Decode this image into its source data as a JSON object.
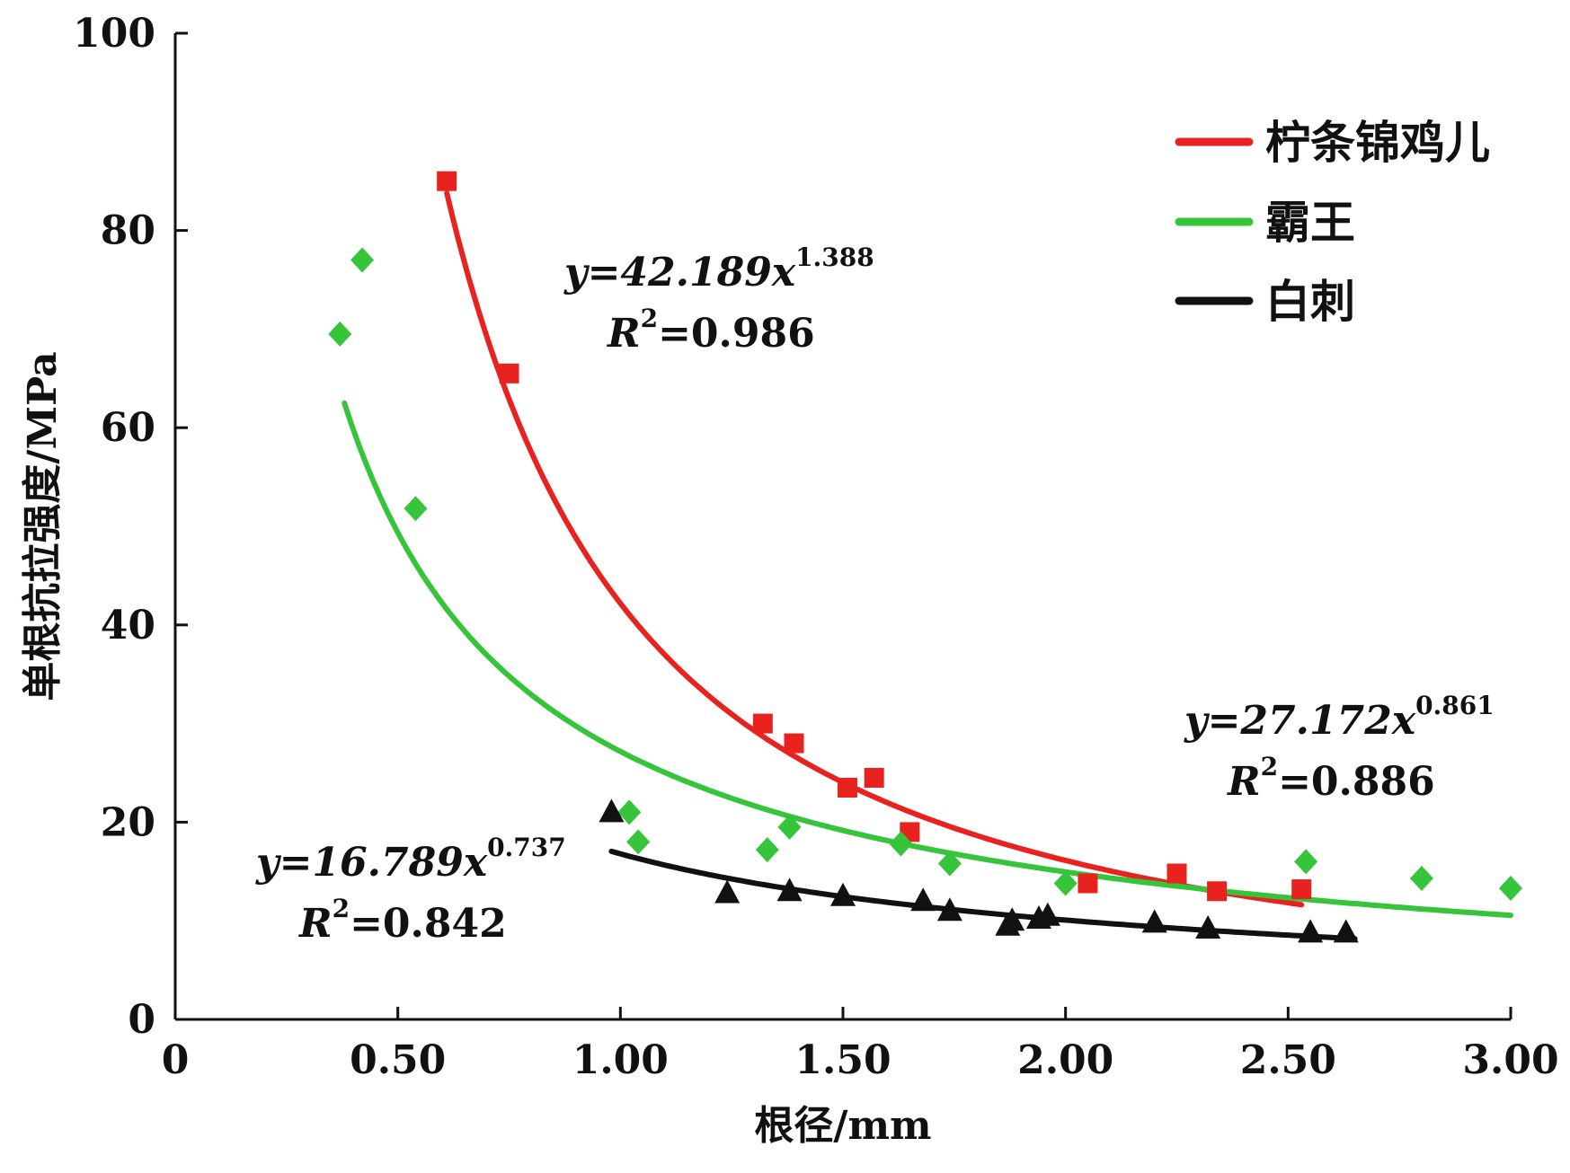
{
  "chart_data": {
    "type": "scatter",
    "xlabel": "根径/mm",
    "ylabel": "单根抗拉强度/MPa",
    "xlim": [
      0,
      3.0
    ],
    "ylim": [
      0,
      100
    ],
    "x_ticks": [
      0,
      0.5,
      1.0,
      1.5,
      2.0,
      2.5,
      3.0
    ],
    "x_tick_labels": [
      "0",
      "0.50",
      "1.00",
      "1.50",
      "2.00",
      "2.50",
      "3.00"
    ],
    "y_ticks": [
      0,
      20,
      40,
      60,
      80,
      100
    ],
    "y_tick_labels": [
      "0",
      "20",
      "40",
      "60",
      "80",
      "100"
    ],
    "legend_position": "top-right",
    "grid": false,
    "series": [
      {
        "name": "柠条锦鸡儿",
        "color": "#e8231f",
        "marker": "square",
        "fit": {
          "a": 42.189,
          "b": 1.388,
          "x_range": [
            0.61,
            2.53
          ]
        },
        "equation": {
          "lhs": "y=42.189x",
          "exp": "1.388",
          "r2_prefix": "R",
          "r2_sup": "2",
          "r2_value": "=0.986"
        },
        "points": [
          [
            0.61,
            85
          ],
          [
            0.75,
            65.5
          ],
          [
            1.32,
            30
          ],
          [
            1.39,
            28
          ],
          [
            1.51,
            23.5
          ],
          [
            1.57,
            24.5
          ],
          [
            1.65,
            19
          ],
          [
            2.05,
            13.8
          ],
          [
            2.25,
            14.8
          ],
          [
            2.34,
            13
          ],
          [
            2.53,
            13.2
          ]
        ]
      },
      {
        "name": "霸王",
        "color": "#35c43a",
        "marker": "diamond",
        "fit": {
          "a": 27.172,
          "b": 0.861,
          "x_range": [
            0.38,
            3.0
          ]
        },
        "equation": {
          "lhs": "y=27.172x",
          "exp": "0.861",
          "r2_prefix": "R",
          "r2_sup": "2",
          "r2_value": "=0.886"
        },
        "points": [
          [
            0.37,
            69.5
          ],
          [
            0.42,
            77
          ],
          [
            0.54,
            51.8
          ],
          [
            1.02,
            21
          ],
          [
            1.04,
            18
          ],
          [
            1.33,
            17.2
          ],
          [
            1.38,
            19.5
          ],
          [
            1.63,
            17.8
          ],
          [
            1.74,
            15.8
          ],
          [
            2.0,
            13.8
          ],
          [
            2.54,
            16
          ],
          [
            2.8,
            14.3
          ],
          [
            3.0,
            13.3
          ]
        ]
      },
      {
        "name": "白刺",
        "color": "#111111",
        "marker": "triangle",
        "fit": {
          "a": 16.789,
          "b": 0.737,
          "x_range": [
            0.98,
            2.65
          ]
        },
        "equation": {
          "lhs": "y=16.789x",
          "exp": "0.737",
          "r2_prefix": "R",
          "r2_sup": "2",
          "r2_value": "=0.842"
        },
        "points": [
          [
            0.98,
            21
          ],
          [
            1.24,
            12.8
          ],
          [
            1.38,
            13
          ],
          [
            1.5,
            12.5
          ],
          [
            1.68,
            12
          ],
          [
            1.74,
            11
          ],
          [
            1.87,
            9.5
          ],
          [
            1.88,
            10
          ],
          [
            1.94,
            10.2
          ],
          [
            1.96,
            10.5
          ],
          [
            2.2,
            9.8
          ],
          [
            2.32,
            9.2
          ],
          [
            2.55,
            8.8
          ],
          [
            2.63,
            8.8
          ]
        ]
      }
    ]
  }
}
